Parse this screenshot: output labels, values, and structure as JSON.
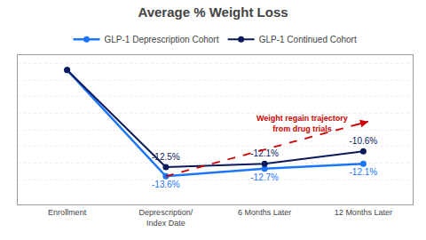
{
  "chart_data": {
    "type": "line",
    "title": "Average % Weight Loss",
    "categories": [
      "Enrollment",
      "Deprescription/\nIndex Date",
      "6 Months Later",
      "12 Months Later"
    ],
    "series": [
      {
        "name": "GLP-1 Deprescription Cohort",
        "color": "#1a75ff",
        "marker": "circle",
        "line_style": "solid",
        "values": [
          -0.8,
          -13.6,
          -12.7,
          -12.1
        ],
        "value_labels": [
          null,
          "-13.6%",
          "-12.7%",
          "-12.1%"
        ]
      },
      {
        "name": "GLP-1 Continued Cohort",
        "color": "#0a1a5c",
        "marker": "circle",
        "line_style": "solid",
        "values": [
          -0.8,
          -12.5,
          -12.1,
          -10.6
        ],
        "value_labels": [
          null,
          "-12.5%",
          "-12.1%",
          "-10.6%"
        ]
      }
    ],
    "ylim": [
      -17,
      1
    ],
    "yticks": [
      -14,
      -12,
      -10,
      -8,
      -6,
      -4,
      -2,
      0
    ],
    "grid": true,
    "tick_labels": "x",
    "data_labels": true,
    "legend": "top",
    "annotations": [
      {
        "text": "Weight regain trajectory\nfrom drug trials",
        "x": 2.38,
        "y": -8.5,
        "color": "#cc0000",
        "line_style": "dash",
        "arrow_from": [
          1.0,
          -13.6
        ],
        "arrow_to": [
          3.05,
          -7.0
        ]
      }
    ]
  }
}
